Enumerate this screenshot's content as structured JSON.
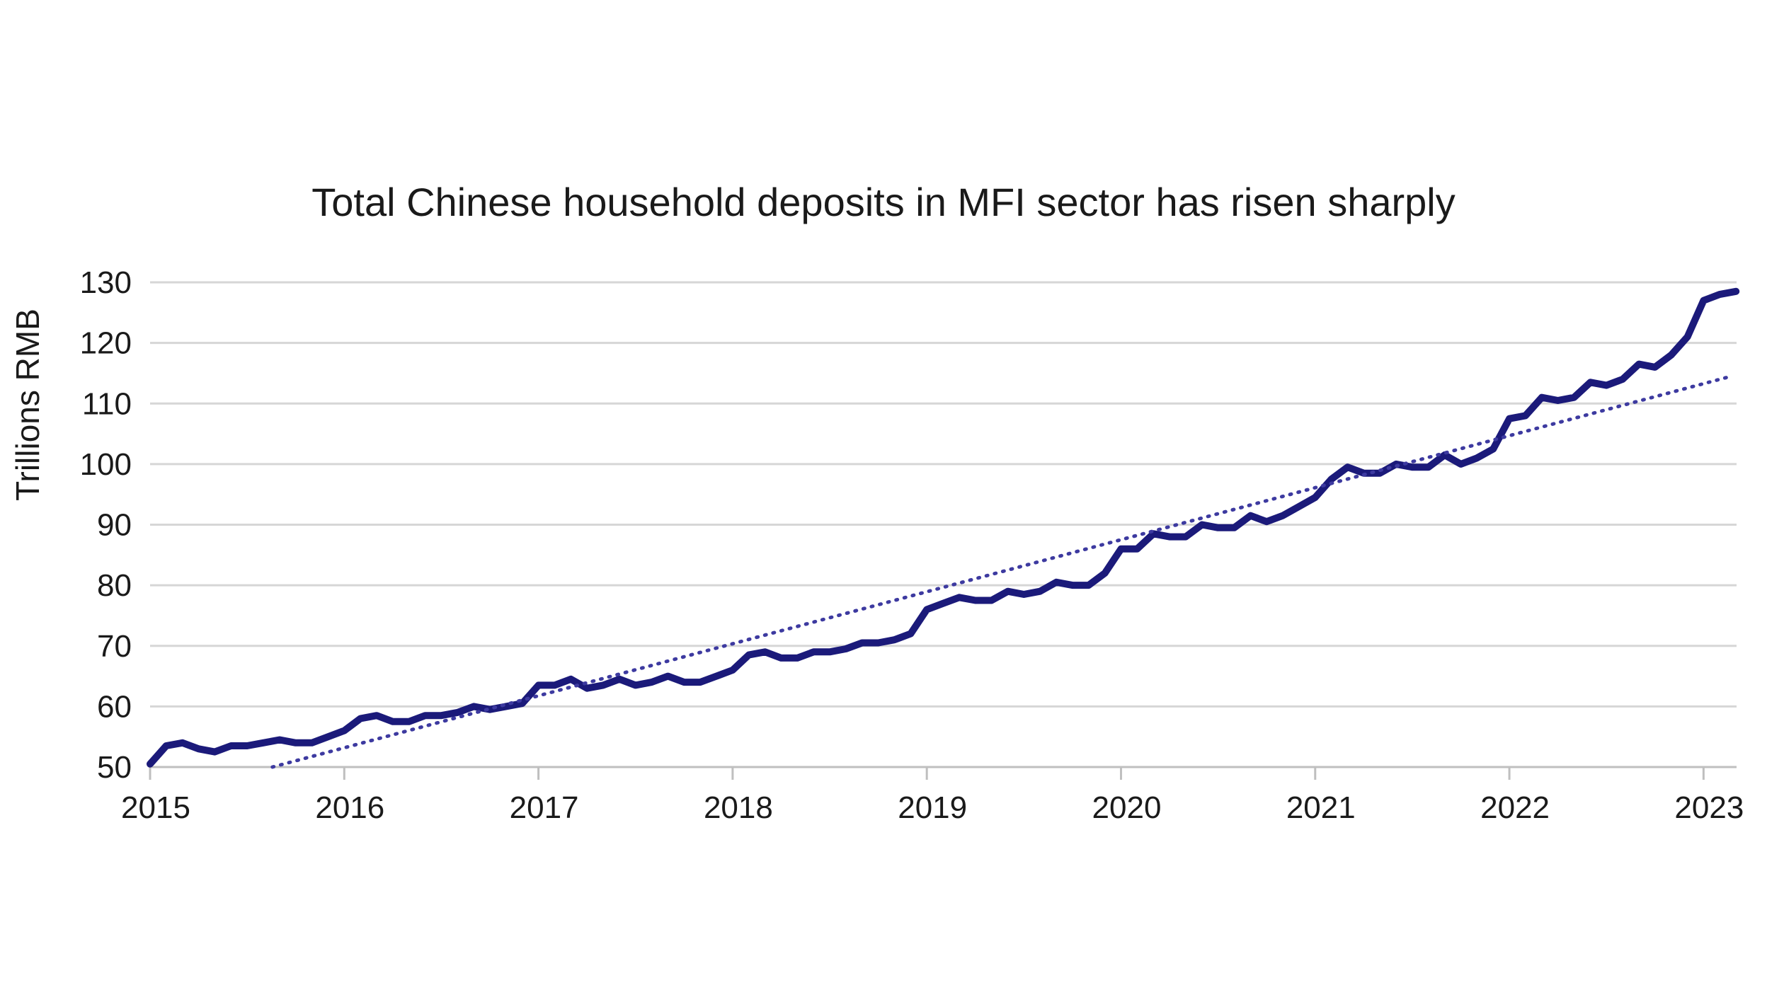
{
  "chart_data": {
    "type": "line",
    "title": "Total Chinese household deposits in MFI sector has risen sharply",
    "xlabel": "",
    "ylabel": "Trillions RMB",
    "xlim": [
      2015.0,
      2023.17
    ],
    "ylim": [
      50,
      130
    ],
    "x_ticks": [
      2015,
      2016,
      2017,
      2018,
      2019,
      2020,
      2021,
      2022,
      2023
    ],
    "x_tick_labels": [
      "2015",
      "2016",
      "2017",
      "2018",
      "2019",
      "2020",
      "2021",
      "2022",
      "2023"
    ],
    "y_ticks": [
      50,
      60,
      70,
      80,
      90,
      100,
      110,
      120,
      130
    ],
    "y_tick_labels": [
      "50",
      "60",
      "70",
      "80",
      "90",
      "100",
      "110",
      "120",
      "130"
    ],
    "grid": true,
    "legend": "none",
    "series": [
      {
        "style": "solid",
        "color": "#1b1a7a",
        "x": [
          2015.0,
          2015.083,
          2015.167,
          2015.25,
          2015.333,
          2015.417,
          2015.5,
          2015.583,
          2015.667,
          2015.75,
          2015.833,
          2015.917,
          2016.0,
          2016.083,
          2016.167,
          2016.25,
          2016.333,
          2016.417,
          2016.5,
          2016.583,
          2016.667,
          2016.75,
          2016.833,
          2016.917,
          2017.0,
          2017.083,
          2017.167,
          2017.25,
          2017.333,
          2017.417,
          2017.5,
          2017.583,
          2017.667,
          2017.75,
          2017.833,
          2017.917,
          2018.0,
          2018.083,
          2018.167,
          2018.25,
          2018.333,
          2018.417,
          2018.5,
          2018.583,
          2018.667,
          2018.75,
          2018.833,
          2018.917,
          2019.0,
          2019.083,
          2019.167,
          2019.25,
          2019.333,
          2019.417,
          2019.5,
          2019.583,
          2019.667,
          2019.75,
          2019.833,
          2019.917,
          2020.0,
          2020.083,
          2020.167,
          2020.25,
          2020.333,
          2020.417,
          2020.5,
          2020.583,
          2020.667,
          2020.75,
          2020.833,
          2020.917,
          2021.0,
          2021.083,
          2021.167,
          2021.25,
          2021.333,
          2021.417,
          2021.5,
          2021.583,
          2021.667,
          2021.75,
          2021.833,
          2021.917,
          2022.0,
          2022.083,
          2022.167,
          2022.25,
          2022.333,
          2022.417,
          2022.5,
          2022.583,
          2022.667,
          2022.75,
          2022.833,
          2022.917,
          2023.0,
          2023.083,
          2023.167
        ],
        "y": [
          50.5,
          53.5,
          54.0,
          53.0,
          52.5,
          53.5,
          53.5,
          54.0,
          54.5,
          54.0,
          54.0,
          55.0,
          56.0,
          58.0,
          58.5,
          57.5,
          57.5,
          58.5,
          58.5,
          59.0,
          60.0,
          59.5,
          60.0,
          60.5,
          63.5,
          63.5,
          64.5,
          63.0,
          63.5,
          64.5,
          63.5,
          64.0,
          65.0,
          64.0,
          64.0,
          65.0,
          66.0,
          68.5,
          69.0,
          68.0,
          68.0,
          69.0,
          69.0,
          69.5,
          70.5,
          70.5,
          71.0,
          72.0,
          76.0,
          77.0,
          78.0,
          77.5,
          77.5,
          79.0,
          78.5,
          79.0,
          80.5,
          80.0,
          80.0,
          82.0,
          86.0,
          86.0,
          88.5,
          88.0,
          88.0,
          90.0,
          89.5,
          89.5,
          91.5,
          90.5,
          91.5,
          93.0,
          94.5,
          97.5,
          99.5,
          98.5,
          98.5,
          100.0,
          99.5,
          99.5,
          101.5,
          100.0,
          101.0,
          102.5,
          107.5,
          108.0,
          111.0,
          110.5,
          111.0,
          113.5,
          113.0,
          114.0,
          116.5,
          116.0,
          118.0,
          121.0,
          127.0,
          128.0,
          128.5
        ]
      },
      {
        "style": "dotted",
        "color": "#3d3aa0",
        "x": [
          2015.63,
          2023.12
        ],
        "y": [
          50.0,
          114.3
        ]
      }
    ]
  }
}
